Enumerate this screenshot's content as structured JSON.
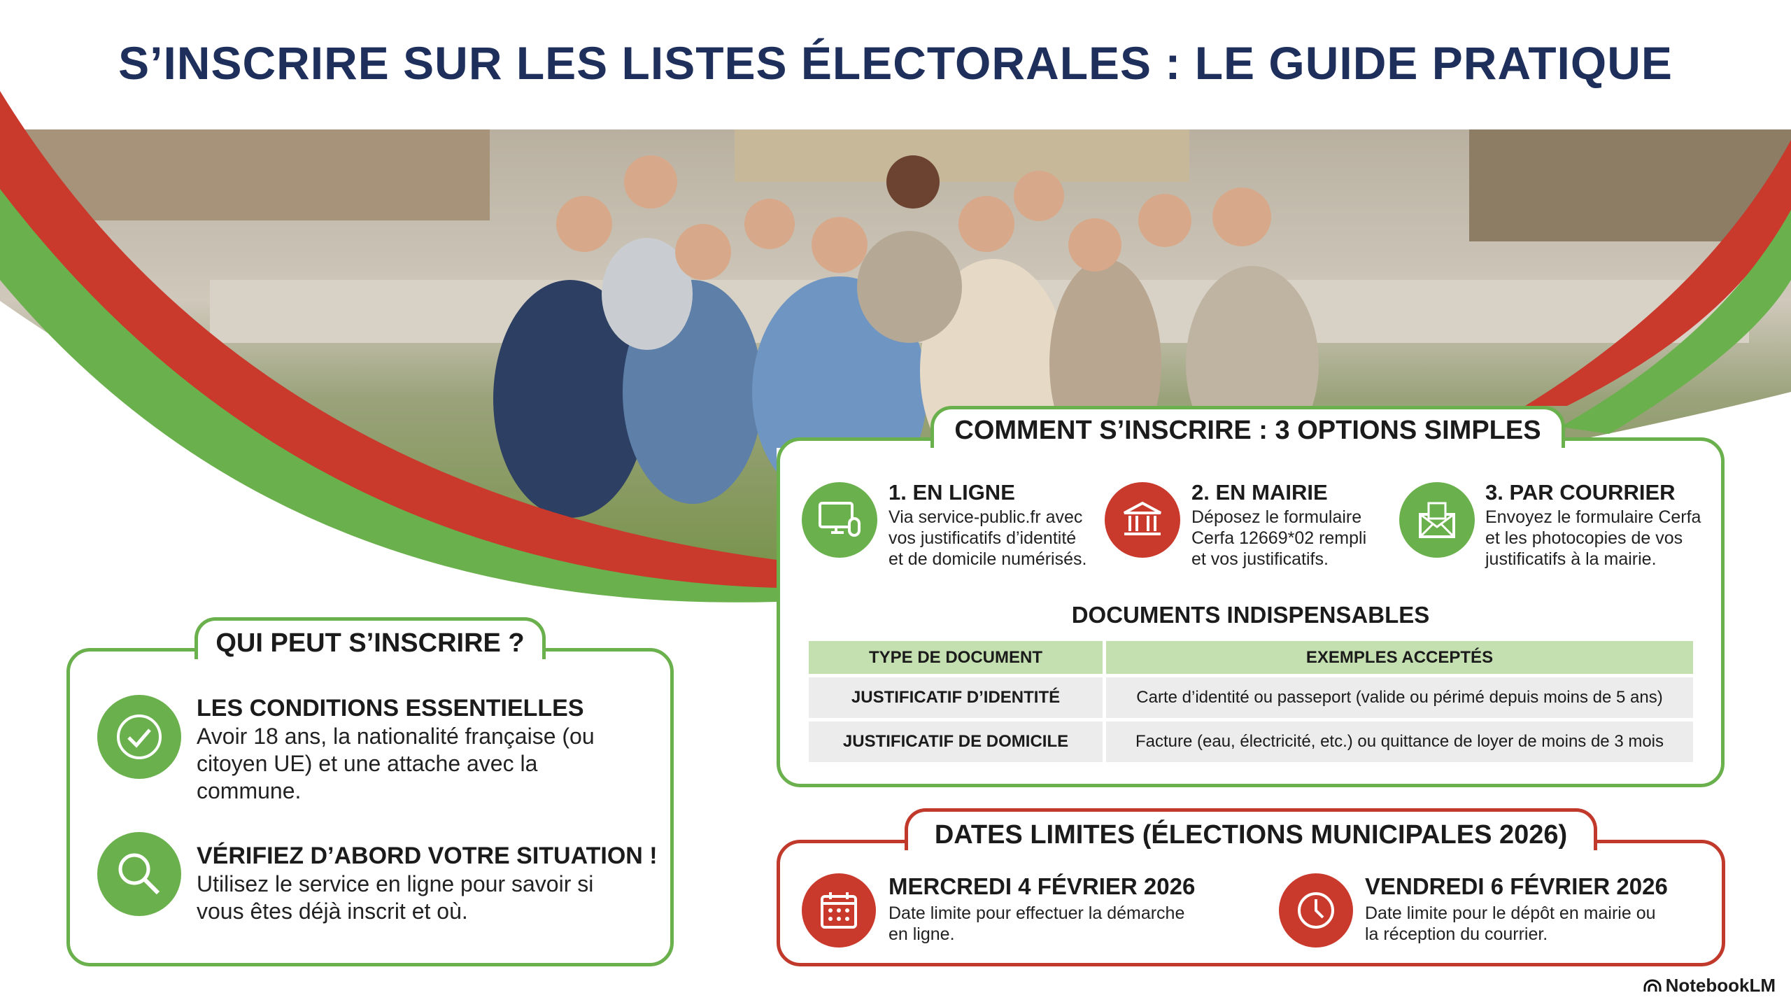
{
  "title": "S’INSCRIRE SUR LES LISTES ÉLECTORALES : LE GUIDE PRATIQUE",
  "colors": {
    "green": "#6ab04c",
    "red": "#c9392c",
    "navy": "#1e2f5c",
    "table_header": "#c5e0b0",
    "table_cell": "#ececec"
  },
  "qui": {
    "heading": "QUI PEUT S’INSCRIRE ?",
    "items": [
      {
        "icon": "check-circle-icon",
        "title": "LES CONDITIONS ESSENTIELLES",
        "lines": [
          "Avoir 18 ans, la nationalité française (ou",
          "citoyen UE) et une attache avec la",
          "commune."
        ]
      },
      {
        "icon": "search-icon",
        "title": "VÉRIFIEZ D’ABORD VOTRE SITUATION !",
        "lines": [
          "Utilisez le service en ligne pour savoir si",
          "vous êtes déjà inscrit et où."
        ]
      }
    ]
  },
  "comment": {
    "heading": "COMMENT S’INSCRIRE : 3 OPTIONS SIMPLES",
    "options": [
      {
        "icon": "computer-icon",
        "title": "1. EN LIGNE",
        "lines": [
          "Via service-public.fr avec",
          "vos justificatifs d’identité",
          "et de domicile numérisés."
        ]
      },
      {
        "icon": "town-hall-icon",
        "title": "2. EN MAIRIE",
        "lines": [
          "Déposez le formulaire",
          "Cerfa 12669*02 rempli",
          "et vos justificatifs."
        ]
      },
      {
        "icon": "envelope-icon",
        "title": "3. PAR COURRIER",
        "lines": [
          "Envoyez le formulaire Cerfa",
          "et les photocopies de vos",
          "justificatifs à la mairie."
        ]
      }
    ],
    "documents_heading": "DOCUMENTS INDISPENSABLES",
    "table": {
      "headers": [
        "TYPE DE DOCUMENT",
        "EXEMPLES ACCEPTÉS"
      ],
      "rows": [
        [
          "JUSTIFICATIF D’IDENTITÉ",
          "Carte d’identité ou passeport (valide ou périmé depuis moins de 5 ans)"
        ],
        [
          "JUSTIFICATIF DE DOMICILE",
          "Facture (eau, électricité, etc.) ou quittance de loyer de moins de 3 mois"
        ]
      ]
    }
  },
  "dates": {
    "heading": "DATES LIMITES (ÉLECTIONS MUNICIPALES 2026)",
    "items": [
      {
        "icon": "calendar-icon",
        "title": "MERCREDI 4 FÉVRIER 2026",
        "lines": [
          "Date limite pour effectuer la démarche",
          "en ligne."
        ]
      },
      {
        "icon": "clock-icon",
        "title": "VENDREDI 6 FÉVRIER 2026",
        "lines": [
          "Date limite pour le dépôt en mairie ou",
          "la réception du courrier."
        ]
      }
    ]
  },
  "watermark": "NotebookLM"
}
